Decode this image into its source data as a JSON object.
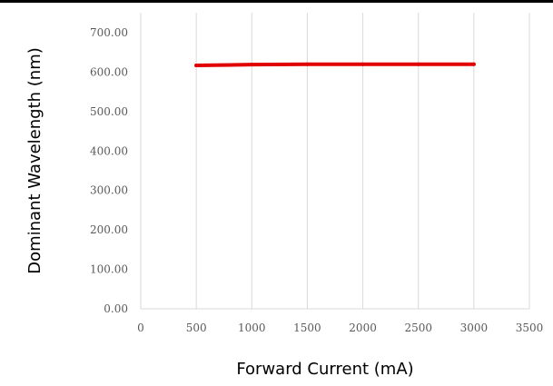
{
  "chart_data": {
    "type": "line",
    "title": "",
    "xlabel": "Forward Current (mA)",
    "ylabel": "Dominant Wavelength (nm)",
    "xlim": [
      0,
      3500
    ],
    "ylim": [
      0,
      700
    ],
    "x_ticks": [
      "0",
      "500",
      "1000",
      "1500",
      "2000",
      "2500",
      "3000",
      "3500"
    ],
    "y_ticks": [
      "0.00",
      "100.00",
      "200.00",
      "300.00",
      "400.00",
      "500.00",
      "600.00",
      "700.00"
    ],
    "grid": "vertical",
    "series": [
      {
        "color": "#e00000",
        "points": [
          {
            "x": 500,
            "y": 617
          },
          {
            "x": 1000,
            "y": 619
          },
          {
            "x": 1500,
            "y": 620
          },
          {
            "x": 2000,
            "y": 620
          },
          {
            "x": 2500,
            "y": 620
          },
          {
            "x": 3000,
            "y": 620
          }
        ]
      }
    ]
  }
}
